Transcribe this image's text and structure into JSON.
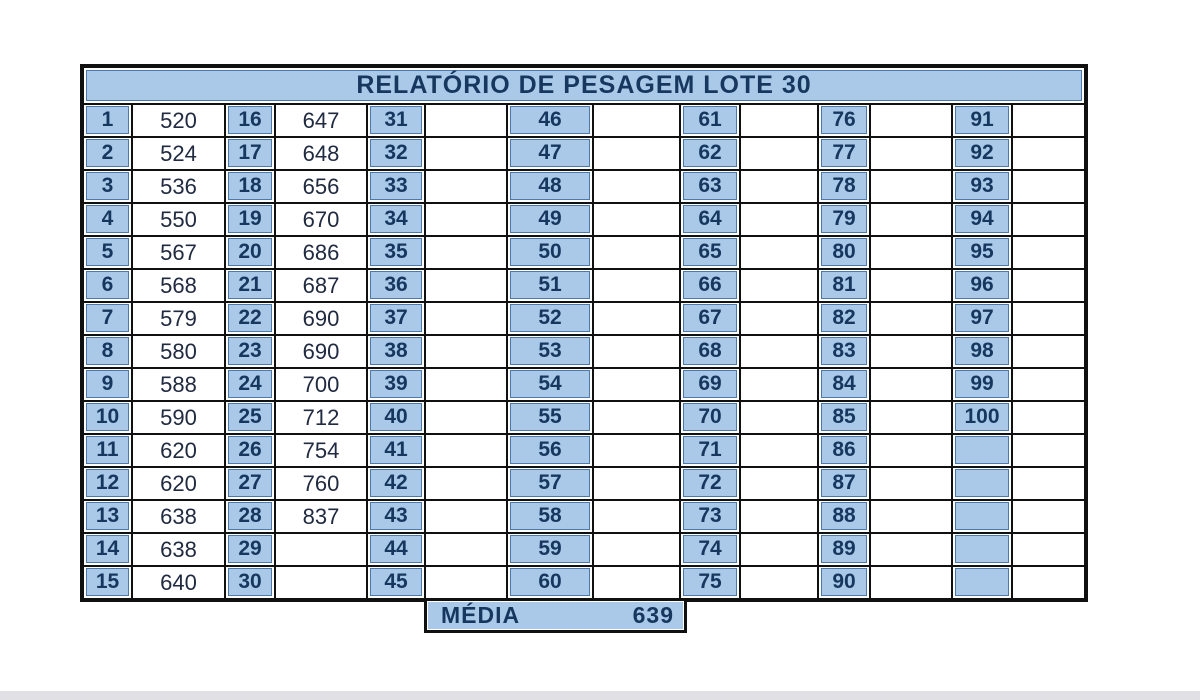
{
  "title": "RELATÓRIO DE PESAGEM LOTE 30",
  "media": {
    "label": "MÉDIA",
    "value": "639"
  },
  "colors": {
    "cell_blue": "#aac9e9",
    "navy_text": "#17375e",
    "value_text": "#202a40",
    "grid_border": "#101010",
    "taskbar_gray": "#e1e1e5"
  },
  "report": {
    "rows": 15,
    "groups": [
      {
        "numbers": [
          "1",
          "2",
          "3",
          "4",
          "5",
          "6",
          "7",
          "8",
          "9",
          "10",
          "11",
          "12",
          "13",
          "14",
          "15"
        ],
        "values": [
          "520",
          "524",
          "536",
          "550",
          "567",
          "568",
          "579",
          "580",
          "588",
          "590",
          "620",
          "620",
          "638",
          "638",
          "640"
        ]
      },
      {
        "numbers": [
          "16",
          "17",
          "18",
          "19",
          "20",
          "21",
          "22",
          "23",
          "24",
          "25",
          "26",
          "27",
          "28",
          "29",
          "30"
        ],
        "values": [
          "647",
          "648",
          "656",
          "670",
          "686",
          "687",
          "690",
          "690",
          "700",
          "712",
          "754",
          "760",
          "837",
          "",
          ""
        ]
      },
      {
        "numbers": [
          "31",
          "32",
          "33",
          "34",
          "35",
          "36",
          "37",
          "38",
          "39",
          "40",
          "41",
          "42",
          "43",
          "44",
          "45"
        ],
        "values": [
          "",
          "",
          "",
          "",
          "",
          "",
          "",
          "",
          "",
          "",
          "",
          "",
          "",
          "",
          ""
        ]
      },
      {
        "numbers": [
          "46",
          "47",
          "48",
          "49",
          "50",
          "51",
          "52",
          "53",
          "54",
          "55",
          "56",
          "57",
          "58",
          "59",
          "60"
        ],
        "values": [
          "",
          "",
          "",
          "",
          "",
          "",
          "",
          "",
          "",
          "",
          "",
          "",
          "",
          "",
          ""
        ]
      },
      {
        "numbers": [
          "61",
          "62",
          "63",
          "64",
          "65",
          "66",
          "67",
          "68",
          "69",
          "70",
          "71",
          "72",
          "73",
          "74",
          "75"
        ],
        "values": [
          "",
          "",
          "",
          "",
          "",
          "",
          "",
          "",
          "",
          "",
          "",
          "",
          "",
          "",
          ""
        ]
      },
      {
        "numbers": [
          "76",
          "77",
          "78",
          "79",
          "80",
          "81",
          "82",
          "83",
          "84",
          "85",
          "86",
          "87",
          "88",
          "89",
          "90"
        ],
        "values": [
          "",
          "",
          "",
          "",
          "",
          "",
          "",
          "",
          "",
          "",
          "",
          "",
          "",
          "",
          ""
        ]
      },
      {
        "numbers": [
          "91",
          "92",
          "93",
          "94",
          "95",
          "96",
          "97",
          "98",
          "99",
          "100",
          "",
          "",
          "",
          "",
          ""
        ],
        "values": [
          "",
          "",
          "",
          "",
          "",
          "",
          "",
          "",
          "",
          "",
          "",
          "",
          "",
          "",
          ""
        ]
      }
    ]
  }
}
